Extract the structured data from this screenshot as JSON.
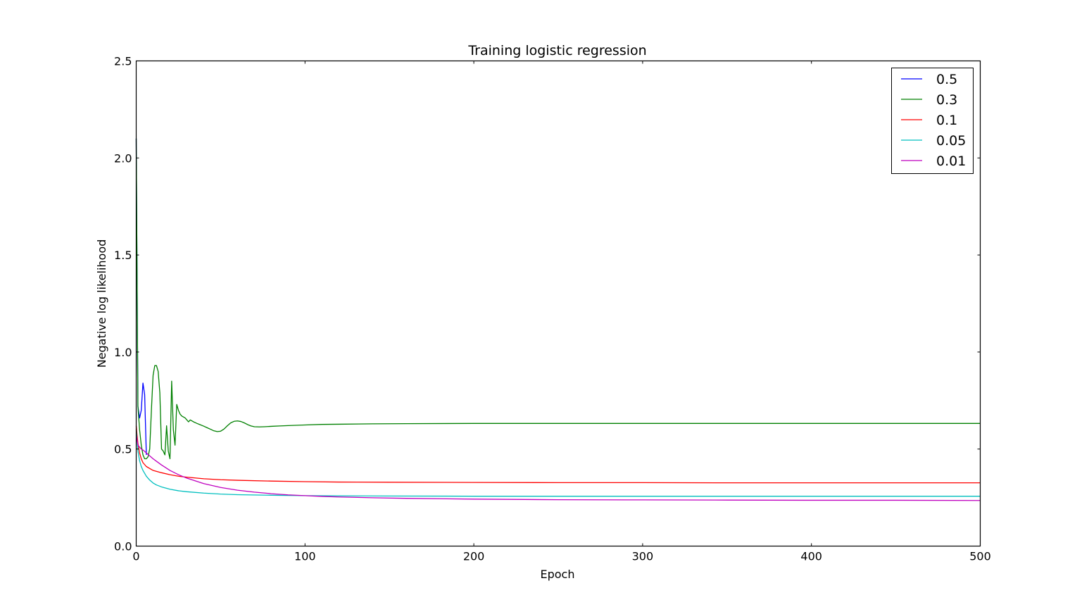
{
  "chart_data": {
    "type": "line",
    "title": "Training logistic regression",
    "xlabel": "Epoch",
    "ylabel": "Negative log likelihood",
    "xlim": [
      0,
      500
    ],
    "ylim": [
      0.0,
      2.5
    ],
    "x_ticks": [
      0,
      100,
      200,
      300,
      400,
      500
    ],
    "x_tick_labels": [
      "0",
      "100",
      "200",
      "300",
      "400",
      "500"
    ],
    "y_ticks": [
      0.0,
      0.5,
      1.0,
      1.5,
      2.0,
      2.5
    ],
    "y_tick_labels": [
      "0.0",
      "0.5",
      "1.0",
      "1.5",
      "2.0",
      "2.5"
    ],
    "grid": false,
    "legend_position": "top-right",
    "series": [
      {
        "name": "0.5",
        "color": "#0000ff",
        "x": [
          0,
          1,
          2,
          3,
          4,
          5,
          6
        ],
        "y": [
          2.1,
          0.72,
          0.66,
          0.7,
          0.84,
          0.78,
          0.47
        ]
      },
      {
        "name": "0.3",
        "color": "#008000",
        "x": [
          0,
          1,
          2,
          3,
          4,
          5,
          6,
          7,
          8,
          9,
          10,
          11,
          12,
          13,
          14,
          15,
          16,
          17,
          18,
          19,
          20,
          21,
          22,
          23,
          24,
          25,
          26,
          27,
          28,
          29,
          30,
          31,
          32,
          33,
          34,
          35,
          36,
          38,
          40,
          42,
          44,
          46,
          48,
          50,
          52,
          54,
          56,
          58,
          60,
          62,
          64,
          66,
          68,
          70,
          73,
          76,
          80,
          85,
          90,
          100,
          110,
          120,
          140,
          160,
          200,
          250,
          300,
          350,
          400,
          450,
          500
        ],
        "y": [
          2.1,
          0.72,
          0.6,
          0.52,
          0.47,
          0.45,
          0.45,
          0.46,
          0.5,
          0.7,
          0.88,
          0.93,
          0.93,
          0.9,
          0.79,
          0.5,
          0.49,
          0.47,
          0.62,
          0.49,
          0.45,
          0.85,
          0.6,
          0.52,
          0.73,
          0.7,
          0.68,
          0.67,
          0.665,
          0.66,
          0.65,
          0.64,
          0.65,
          0.645,
          0.64,
          0.636,
          0.632,
          0.625,
          0.618,
          0.61,
          0.602,
          0.594,
          0.59,
          0.592,
          0.603,
          0.62,
          0.635,
          0.643,
          0.645,
          0.642,
          0.635,
          0.626,
          0.619,
          0.615,
          0.614,
          0.615,
          0.617,
          0.619,
          0.621,
          0.624,
          0.627,
          0.628,
          0.63,
          0.631,
          0.632,
          0.632,
          0.632,
          0.632,
          0.632,
          0.632,
          0.632
        ]
      },
      {
        "name": "0.1",
        "color": "#ff0000",
        "x": [
          0,
          1,
          2,
          3,
          4,
          5,
          6,
          8,
          10,
          12,
          15,
          20,
          25,
          30,
          40,
          50,
          60,
          80,
          100,
          120,
          150,
          200,
          250,
          300,
          350,
          400,
          450,
          500
        ],
        "y": [
          0.62,
          0.53,
          0.48,
          0.45,
          0.43,
          0.42,
          0.41,
          0.4,
          0.39,
          0.385,
          0.378,
          0.368,
          0.36,
          0.355,
          0.347,
          0.342,
          0.339,
          0.335,
          0.332,
          0.33,
          0.329,
          0.328,
          0.327,
          0.327,
          0.326,
          0.326,
          0.326,
          0.326
        ]
      },
      {
        "name": "0.05",
        "color": "#00bfbf",
        "x": [
          0,
          1,
          2,
          3,
          4,
          5,
          6,
          8,
          10,
          12,
          15,
          20,
          25,
          30,
          40,
          50,
          60,
          80,
          100,
          120,
          150,
          200,
          250,
          300,
          350,
          400,
          450,
          500
        ],
        "y": [
          0.6,
          0.49,
          0.44,
          0.41,
          0.39,
          0.375,
          0.36,
          0.34,
          0.325,
          0.315,
          0.305,
          0.293,
          0.285,
          0.28,
          0.273,
          0.268,
          0.265,
          0.262,
          0.26,
          0.259,
          0.258,
          0.257,
          0.257,
          0.257,
          0.257,
          0.257,
          0.257,
          0.257
        ]
      },
      {
        "name": "0.01",
        "color": "#bf00bf",
        "x": [
          0,
          1,
          2,
          3,
          4,
          5,
          6,
          8,
          10,
          12,
          15,
          20,
          25,
          30,
          40,
          50,
          60,
          70,
          80,
          90,
          100,
          110,
          120,
          140,
          160,
          180,
          200,
          250,
          300,
          350,
          400,
          450,
          500
        ],
        "y": [
          0.57,
          0.52,
          0.51,
          0.5,
          0.495,
          0.488,
          0.48,
          0.465,
          0.45,
          0.437,
          0.418,
          0.39,
          0.368,
          0.35,
          0.322,
          0.302,
          0.288,
          0.278,
          0.27,
          0.264,
          0.26,
          0.256,
          0.253,
          0.249,
          0.246,
          0.244,
          0.242,
          0.239,
          0.238,
          0.237,
          0.236,
          0.236,
          0.235
        ]
      }
    ]
  }
}
